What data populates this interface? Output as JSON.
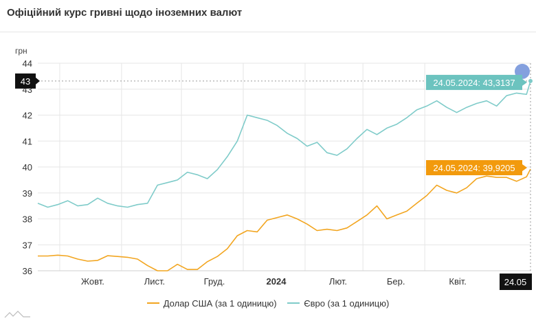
{
  "page": {
    "title": "Офіційний курс гривні щодо іноземних валют"
  },
  "chart_data": {
    "type": "line",
    "title": "Офіційний курс гривні щодо іноземних валют",
    "ylabel": "грн",
    "xlabel": "",
    "ylim": [
      36,
      44
    ],
    "yticks": [
      36,
      37,
      38,
      39,
      40,
      41,
      42,
      43,
      44
    ],
    "x_domain": [
      "2023-09-20",
      "2024-05-24"
    ],
    "x_ticks": [
      {
        "date": "2023-10-01",
        "label": "Жовт."
      },
      {
        "date": "2023-11-01",
        "label": "Лист."
      },
      {
        "date": "2023-12-01",
        "label": "Груд."
      },
      {
        "date": "2024-01-01",
        "label": "2024"
      },
      {
        "date": "2024-02-01",
        "label": "Лют."
      },
      {
        "date": "2024-03-01",
        "label": "Бер."
      },
      {
        "date": "2024-04-01",
        "label": "Квіт."
      }
    ],
    "grid": true,
    "legend_position": "bottom",
    "series": [
      {
        "name": "Долар США (за 1 одиницю)",
        "color": "#f2a51f",
        "points": [
          [
            "2023-09-20",
            36.57
          ],
          [
            "2023-09-25",
            36.57
          ],
          [
            "2023-09-30",
            36.6
          ],
          [
            "2023-10-05",
            36.57
          ],
          [
            "2023-10-10",
            36.45
          ],
          [
            "2023-10-15",
            36.37
          ],
          [
            "2023-10-20",
            36.4
          ],
          [
            "2023-10-25",
            36.58
          ],
          [
            "2023-10-30",
            36.55
          ],
          [
            "2023-11-04",
            36.52
          ],
          [
            "2023-11-09",
            36.45
          ],
          [
            "2023-11-14",
            36.2
          ],
          [
            "2023-11-19",
            36.0
          ],
          [
            "2023-11-24",
            36.0
          ],
          [
            "2023-11-29",
            36.25
          ],
          [
            "2023-12-04",
            36.05
          ],
          [
            "2023-12-09",
            36.05
          ],
          [
            "2023-12-14",
            36.35
          ],
          [
            "2023-12-19",
            36.55
          ],
          [
            "2023-12-24",
            36.85
          ],
          [
            "2023-12-29",
            37.35
          ],
          [
            "2024-01-03",
            37.55
          ],
          [
            "2024-01-08",
            37.5
          ],
          [
            "2024-01-13",
            37.95
          ],
          [
            "2024-01-18",
            38.05
          ],
          [
            "2024-01-23",
            38.15
          ],
          [
            "2024-01-28",
            38.0
          ],
          [
            "2024-02-02",
            37.8
          ],
          [
            "2024-02-07",
            37.55
          ],
          [
            "2024-02-12",
            37.6
          ],
          [
            "2024-02-17",
            37.55
          ],
          [
            "2024-02-22",
            37.65
          ],
          [
            "2024-02-27",
            37.9
          ],
          [
            "2024-03-03",
            38.15
          ],
          [
            "2024-03-08",
            38.5
          ],
          [
            "2024-03-13",
            38.0
          ],
          [
            "2024-03-18",
            38.15
          ],
          [
            "2024-03-23",
            38.3
          ],
          [
            "2024-03-28",
            38.6
          ],
          [
            "2024-04-02",
            38.9
          ],
          [
            "2024-04-07",
            39.3
          ],
          [
            "2024-04-12",
            39.1
          ],
          [
            "2024-04-17",
            39.0
          ],
          [
            "2024-04-22",
            39.2
          ],
          [
            "2024-04-27",
            39.55
          ],
          [
            "2024-05-02",
            39.65
          ],
          [
            "2024-05-07",
            39.6
          ],
          [
            "2024-05-12",
            39.6
          ],
          [
            "2024-05-17",
            39.45
          ],
          [
            "2024-05-22",
            39.62
          ],
          [
            "2024-05-24",
            39.9205
          ]
        ]
      },
      {
        "name": "Євро (за 1 одиницю)",
        "color": "#7ecbc9",
        "points": [
          [
            "2023-09-20",
            38.6
          ],
          [
            "2023-09-25",
            38.45
          ],
          [
            "2023-09-30",
            38.55
          ],
          [
            "2023-10-05",
            38.7
          ],
          [
            "2023-10-10",
            38.5
          ],
          [
            "2023-10-15",
            38.55
          ],
          [
            "2023-10-20",
            38.8
          ],
          [
            "2023-10-25",
            38.6
          ],
          [
            "2023-10-30",
            38.5
          ],
          [
            "2023-11-04",
            38.45
          ],
          [
            "2023-11-09",
            38.55
          ],
          [
            "2023-11-14",
            38.6
          ],
          [
            "2023-11-19",
            39.3
          ],
          [
            "2023-11-24",
            39.4
          ],
          [
            "2023-11-29",
            39.5
          ],
          [
            "2023-12-04",
            39.8
          ],
          [
            "2023-12-09",
            39.7
          ],
          [
            "2023-12-14",
            39.55
          ],
          [
            "2023-12-19",
            39.9
          ],
          [
            "2023-12-24",
            40.4
          ],
          [
            "2023-12-29",
            41.0
          ],
          [
            "2024-01-03",
            42.0
          ],
          [
            "2024-01-08",
            41.9
          ],
          [
            "2024-01-13",
            41.8
          ],
          [
            "2024-01-18",
            41.6
          ],
          [
            "2024-01-23",
            41.3
          ],
          [
            "2024-01-28",
            41.1
          ],
          [
            "2024-02-02",
            40.8
          ],
          [
            "2024-02-07",
            40.95
          ],
          [
            "2024-02-12",
            40.55
          ],
          [
            "2024-02-17",
            40.45
          ],
          [
            "2024-02-22",
            40.7
          ],
          [
            "2024-02-27",
            41.1
          ],
          [
            "2024-03-03",
            41.45
          ],
          [
            "2024-03-08",
            41.25
          ],
          [
            "2024-03-13",
            41.5
          ],
          [
            "2024-03-18",
            41.65
          ],
          [
            "2024-03-23",
            41.9
          ],
          [
            "2024-03-28",
            42.2
          ],
          [
            "2024-04-02",
            42.35
          ],
          [
            "2024-04-07",
            42.55
          ],
          [
            "2024-04-12",
            42.3
          ],
          [
            "2024-04-17",
            42.1
          ],
          [
            "2024-04-22",
            42.3
          ],
          [
            "2024-04-27",
            42.45
          ],
          [
            "2024-05-02",
            42.55
          ],
          [
            "2024-05-07",
            42.35
          ],
          [
            "2024-05-12",
            42.75
          ],
          [
            "2024-05-17",
            42.85
          ],
          [
            "2024-05-22",
            42.8
          ],
          [
            "2024-05-24",
            43.3137
          ]
        ]
      }
    ],
    "annotations": {
      "crosshair_y_label": "43",
      "crosshair_x_label": "24.05",
      "eur_tooltip": "24.05.2024: 43,3137",
      "usd_tooltip": "24.05.2024: 39,9205"
    }
  }
}
